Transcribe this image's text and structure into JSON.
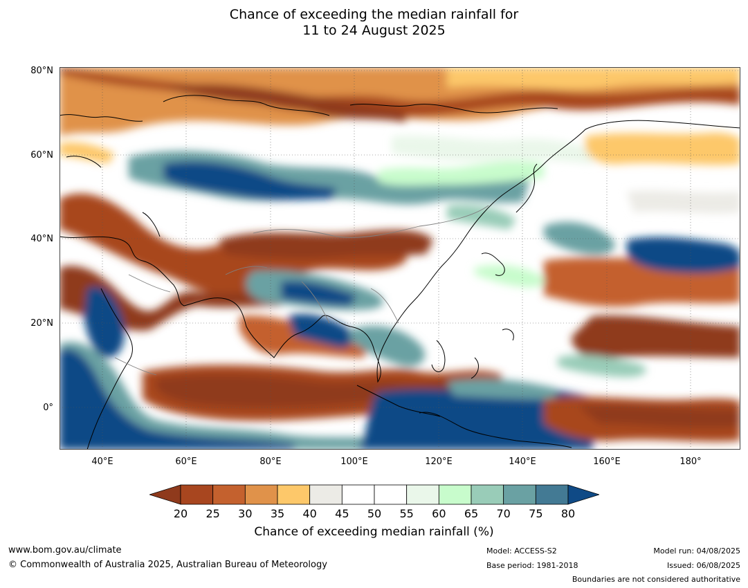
{
  "title": {
    "line1": "Chance of exceeding the median rainfall for",
    "line2": "11 to 24 August 2025"
  },
  "axes": {
    "lat_labels": [
      "80°N",
      "60°N",
      "40°N",
      "20°N",
      "0°"
    ],
    "lon_labels": [
      "40°E",
      "60°E",
      "80°E",
      "100°E",
      "120°E",
      "140°E",
      "160°E",
      "180°"
    ]
  },
  "colorbar": {
    "ticks": [
      "20",
      "25",
      "30",
      "35",
      "40",
      "45",
      "50",
      "55",
      "60",
      "65",
      "70",
      "75",
      "80"
    ],
    "colors": [
      "#8f3a1c",
      "#a8461f",
      "#c4612e",
      "#e0924a",
      "#fdc86a",
      "#ecebe6",
      "#ffffff",
      "#ffffff",
      "#eaf7ea",
      "#c8fccc",
      "#99ccb8",
      "#6aa1a3",
      "#437a94",
      "#0f4a86"
    ],
    "label": "Chance of exceeding median rainfall (%)"
  },
  "footer": {
    "url": "www.bom.gov.au/climate",
    "copyright": "© Commonwealth of Australia 2025, Australian Bureau of Meteorology",
    "model": "Model: ACCESS-S2",
    "base_period": "Base period: 1981-2018",
    "model_run": "Model run: 04/08/2025",
    "issued": "Issued: 06/08/2025",
    "disclaimer": "Boundaries are not considered authoritative"
  }
}
